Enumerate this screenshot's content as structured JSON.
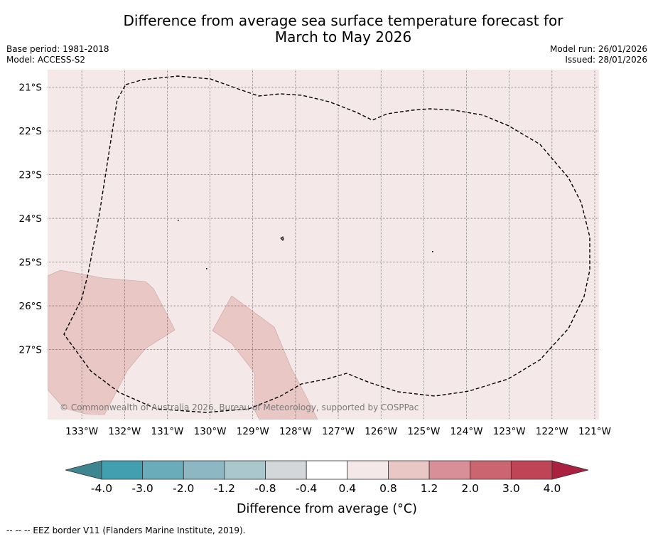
{
  "title_line1": "Difference from average sea surface temperature forecast for",
  "title_line2": "March to May 2026",
  "base_period": "Base period: 1981-2018",
  "model": "Model: ACCESS-S2",
  "model_run": "Model run: 26/01/2026",
  "issued": "Issued: 28/01/2026",
  "credit": "© Commonwealth of Australia 2026, Bureau of Meteorology, supported by COSPPac",
  "footnote": "--  --  -- EEZ border V11 (Flanders Marine Institute, 2019).",
  "latitudes": [
    {
      "value": -21,
      "label": "21°S"
    },
    {
      "value": -22,
      "label": "22°S"
    },
    {
      "value": -23,
      "label": "23°S"
    },
    {
      "value": -24,
      "label": "24°S"
    },
    {
      "value": -25,
      "label": "25°S"
    },
    {
      "value": -26,
      "label": "26°S"
    },
    {
      "value": -27,
      "label": "27°S"
    }
  ],
  "longitudes": [
    {
      "value": -133,
      "label": "133°W"
    },
    {
      "value": -132,
      "label": "132°W"
    },
    {
      "value": -131,
      "label": "131°W"
    },
    {
      "value": -130,
      "label": "130°W"
    },
    {
      "value": -129,
      "label": "129°W"
    },
    {
      "value": -128,
      "label": "128°W"
    },
    {
      "value": -127,
      "label": "127°W"
    },
    {
      "value": -126,
      "label": "126°W"
    },
    {
      "value": -125,
      "label": "125°W"
    },
    {
      "value": -124,
      "label": "124°W"
    },
    {
      "value": -123,
      "label": "123°W"
    },
    {
      "value": -122,
      "label": "122°W"
    },
    {
      "value": -121,
      "label": "121°W"
    }
  ],
  "map_extent": {
    "lon_min": -133.8,
    "lon_max": -120.9,
    "lat_min": -28.6,
    "lat_max": -20.6
  },
  "field": {
    "background_category": "0.4 to 0.8",
    "background_color": "#f5e8e8",
    "warm_patch_category": "0.8 to 1.2",
    "warm_patch_color": "#e8c7c5"
  },
  "colorbar": {
    "label": "Difference from average (°C)",
    "ticks": [
      "-4.0",
      "-3.0",
      "-2.0",
      "-1.2",
      "-0.8",
      "-0.4",
      "0.4",
      "0.8",
      "1.2",
      "2.0",
      "3.0",
      "4.0"
    ],
    "colors": [
      "#429fb0",
      "#6aacb9",
      "#8db8c3",
      "#a9c7cc",
      "#d4d7da",
      "#ffffff",
      "#f5e8e8",
      "#e8c7c5",
      "#d88f97",
      "#cb6671",
      "#bf4455"
    ],
    "under_color": "#3d8590",
    "over_color": "#a9213f"
  }
}
